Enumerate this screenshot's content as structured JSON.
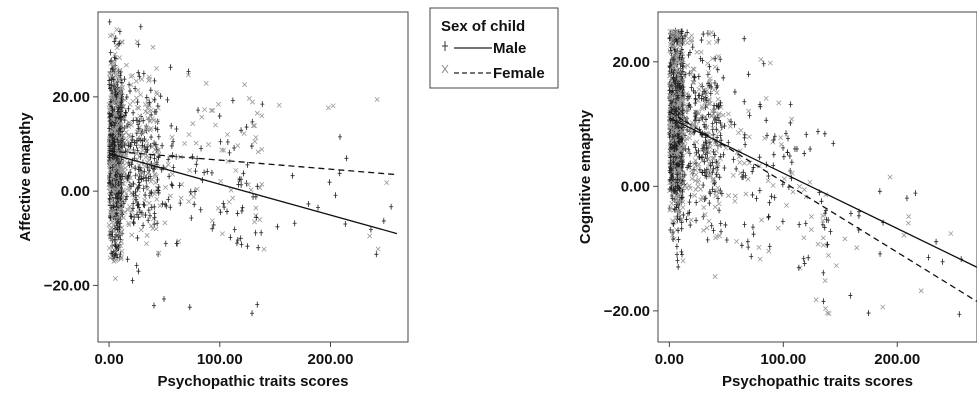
{
  "legend": {
    "title": "Sex of child",
    "entries": [
      {
        "label": "Male",
        "line": "solid",
        "color": "#333333"
      },
      {
        "label": "Female",
        "line": "dashed",
        "color": "#888888"
      }
    ]
  },
  "chart_data": [
    {
      "type": "scatter",
      "xlabel": "Psychopathic traits scores",
      "ylabel": "Affective emapthy",
      "xlim": [
        -10,
        270
      ],
      "ylim": [
        -32,
        38
      ],
      "x_ticks": [
        0,
        100,
        200
      ],
      "x_tick_labels": [
        "0.00",
        "100.00",
        "200.00"
      ],
      "y_ticks": [
        -20,
        0,
        20
      ],
      "y_tick_labels": [
        "−20.00",
        "0.00",
        "20.00"
      ],
      "series": [
        {
          "name": "Male",
          "fit": {
            "x": [
              0,
              260
            ],
            "y": [
              8.0,
              -9.0
            ]
          }
        },
        {
          "name": "Female",
          "fit": {
            "x": [
              0,
              260
            ],
            "y": [
              8.5,
              3.5
            ]
          }
        }
      ],
      "legend_position": "top-right"
    },
    {
      "type": "scatter",
      "xlabel": "Psychopathic traits scores",
      "ylabel": "Cognitive emapthy",
      "xlim": [
        -10,
        270
      ],
      "ylim": [
        -25,
        28
      ],
      "x_ticks": [
        0,
        100,
        200
      ],
      "x_tick_labels": [
        "0.00",
        "100.00",
        "200.00"
      ],
      "y_ticks": [
        -20,
        0,
        20
      ],
      "y_tick_labels": [
        "−20.00",
        "0.00",
        "20.00"
      ],
      "series": [
        {
          "name": "Male",
          "fit": {
            "x": [
              0,
              270
            ],
            "y": [
              11.0,
              -13.0
            ]
          }
        },
        {
          "name": "Female",
          "fit": {
            "x": [
              0,
              270
            ],
            "y": [
              12.0,
              -18.5
            ]
          }
        }
      ]
    }
  ]
}
